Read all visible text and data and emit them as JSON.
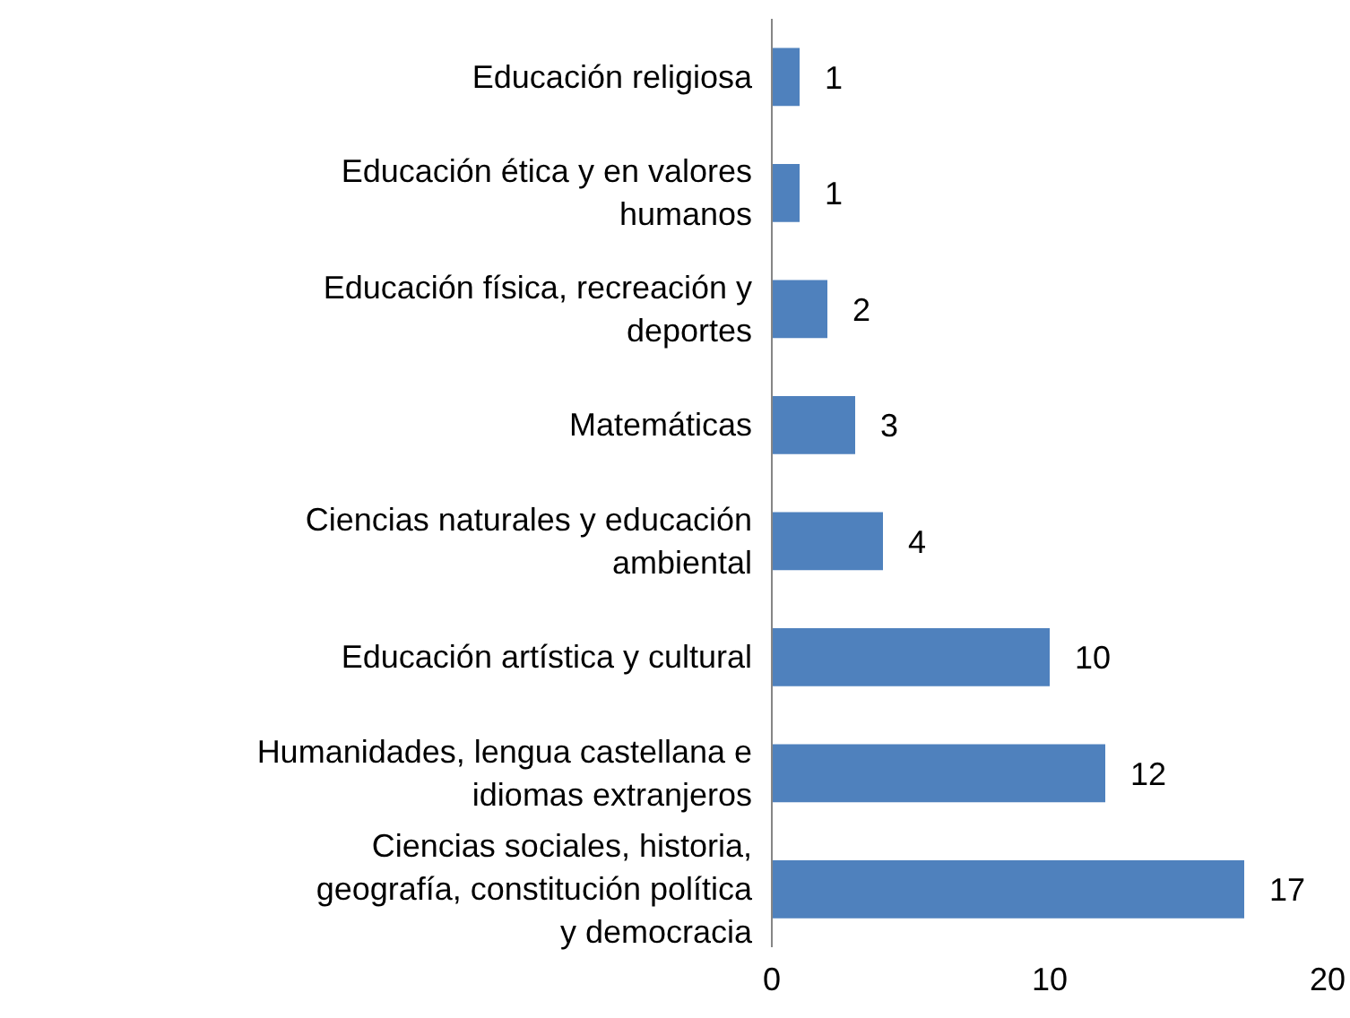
{
  "chart_data": {
    "type": "bar",
    "orientation": "horizontal",
    "categories": [
      "Educación religiosa",
      "Educación ética y en valores humanos",
      "Educación física, recreación y deportes",
      "Matemáticas",
      "Ciencias naturales y educación ambiental",
      "Educación artística y cultural",
      "Humanidades, lengua castellana e idiomas extranjeros",
      "Ciencias sociales, historia, geografía, constitución política y democracia"
    ],
    "values": [
      1,
      1,
      2,
      3,
      4,
      10,
      12,
      17
    ],
    "color": "#4f81bd",
    "xlim": [
      0,
      20
    ],
    "xticks": [
      0,
      10,
      20
    ],
    "data_labels": true,
    "grid": false
  }
}
